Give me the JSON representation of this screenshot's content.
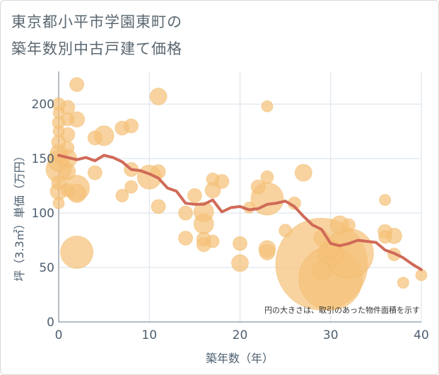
{
  "chart_data": {
    "type": "scatter",
    "title_lines": [
      "東京都小平市学園東町の",
      "築年数別中古戸建て価格"
    ],
    "xlabel": "築年数（年）",
    "ylabel": "坪（3.3㎡）単価（万円）",
    "xlim": [
      0,
      40
    ],
    "ylim": [
      0,
      230
    ],
    "x_ticks": [
      0,
      10,
      20,
      30,
      40
    ],
    "y_ticks": [
      0,
      50,
      100,
      150,
      200
    ],
    "note": "円の大きさは、取引のあった物件面積を示す",
    "colors": {
      "bubble": "#f5c27a",
      "bubble_stroke": "#f0b35a",
      "trend": "#d06a58",
      "grid": "#d8e1ea"
    },
    "trend": [
      [
        0,
        153
      ],
      [
        1,
        151
      ],
      [
        2,
        149
      ],
      [
        3,
        151
      ],
      [
        4,
        148
      ],
      [
        5,
        153
      ],
      [
        6,
        151
      ],
      [
        7,
        147
      ],
      [
        8,
        140
      ],
      [
        9,
        139
      ],
      [
        10,
        136
      ],
      [
        11,
        132
      ],
      [
        12,
        123
      ],
      [
        13,
        120
      ],
      [
        14,
        109
      ],
      [
        15,
        108
      ],
      [
        16,
        108
      ],
      [
        17,
        112
      ],
      [
        18,
        101
      ],
      [
        19,
        105
      ],
      [
        20,
        106
      ],
      [
        21,
        103
      ],
      [
        22,
        104
      ],
      [
        23,
        108
      ],
      [
        24,
        109
      ],
      [
        25,
        111
      ],
      [
        26,
        106
      ],
      [
        27,
        97
      ],
      [
        28,
        89
      ],
      [
        29,
        85
      ],
      [
        30,
        72
      ],
      [
        31,
        70
      ],
      [
        32,
        72
      ],
      [
        33,
        75
      ],
      [
        34,
        74
      ],
      [
        35,
        73
      ],
      [
        36,
        66
      ],
      [
        37,
        63
      ],
      [
        38,
        59
      ],
      [
        39,
        53
      ],
      [
        40,
        48
      ]
    ],
    "points": [
      {
        "x": 0,
        "y": 200,
        "s": 0.9
      },
      {
        "x": 0,
        "y": 192,
        "s": 0.8
      },
      {
        "x": 0,
        "y": 183,
        "s": 0.9
      },
      {
        "x": 0,
        "y": 175,
        "s": 0.8
      },
      {
        "x": 0,
        "y": 165,
        "s": 1.0
      },
      {
        "x": 0,
        "y": 155,
        "s": 1.2
      },
      {
        "x": 0,
        "y": 148,
        "s": 1.5
      },
      {
        "x": 0,
        "y": 140,
        "s": 1.8
      },
      {
        "x": 0,
        "y": 128,
        "s": 1.0
      },
      {
        "x": 0,
        "y": 120,
        "s": 1.2
      },
      {
        "x": 0,
        "y": 109,
        "s": 0.8
      },
      {
        "x": 1,
        "y": 197,
        "s": 1.0
      },
      {
        "x": 1,
        "y": 186,
        "s": 0.9
      },
      {
        "x": 1,
        "y": 172,
        "s": 1.0
      },
      {
        "x": 1,
        "y": 160,
        "s": 0.9
      },
      {
        "x": 1,
        "y": 150,
        "s": 1.3
      },
      {
        "x": 1,
        "y": 138,
        "s": 1.1
      },
      {
        "x": 1,
        "y": 121,
        "s": 0.9
      },
      {
        "x": 2,
        "y": 218,
        "s": 1.0
      },
      {
        "x": 2,
        "y": 186,
        "s": 1.1
      },
      {
        "x": 2,
        "y": 123,
        "s": 1.8
      },
      {
        "x": 2,
        "y": 118,
        "s": 1.3
      },
      {
        "x": 2,
        "y": 64,
        "s": 2.3
      },
      {
        "x": 4,
        "y": 169,
        "s": 1.0
      },
      {
        "x": 4,
        "y": 137,
        "s": 1.0
      },
      {
        "x": 5,
        "y": 171,
        "s": 1.4
      },
      {
        "x": 7,
        "y": 178,
        "s": 1.0
      },
      {
        "x": 7,
        "y": 116,
        "s": 0.9
      },
      {
        "x": 8,
        "y": 180,
        "s": 1.0
      },
      {
        "x": 8,
        "y": 140,
        "s": 1.0
      },
      {
        "x": 8,
        "y": 124,
        "s": 0.9
      },
      {
        "x": 10,
        "y": 133,
        "s": 1.7
      },
      {
        "x": 11,
        "y": 207,
        "s": 1.2
      },
      {
        "x": 11,
        "y": 138,
        "s": 1.0
      },
      {
        "x": 11,
        "y": 106,
        "s": 1.0
      },
      {
        "x": 14,
        "y": 100,
        "s": 1.0
      },
      {
        "x": 14,
        "y": 77,
        "s": 1.0
      },
      {
        "x": 15,
        "y": 116,
        "s": 1.0
      },
      {
        "x": 16,
        "y": 101,
        "s": 1.4
      },
      {
        "x": 16,
        "y": 90,
        "s": 1.4
      },
      {
        "x": 16,
        "y": 76,
        "s": 1.0
      },
      {
        "x": 16,
        "y": 71,
        "s": 1.0
      },
      {
        "x": 17,
        "y": 131,
        "s": 0.9
      },
      {
        "x": 17,
        "y": 121,
        "s": 1.1
      },
      {
        "x": 17,
        "y": 74,
        "s": 0.9
      },
      {
        "x": 18,
        "y": 129,
        "s": 1.0
      },
      {
        "x": 20,
        "y": 72,
        "s": 1.0
      },
      {
        "x": 20,
        "y": 54,
        "s": 1.2
      },
      {
        "x": 21,
        "y": 105,
        "s": 0.8
      },
      {
        "x": 22,
        "y": 124,
        "s": 1.0
      },
      {
        "x": 23,
        "y": 198,
        "s": 0.8
      },
      {
        "x": 23,
        "y": 133,
        "s": 0.9
      },
      {
        "x": 23,
        "y": 113,
        "s": 2.3
      },
      {
        "x": 23,
        "y": 67,
        "s": 1.2
      },
      {
        "x": 23,
        "y": 64,
        "s": 1.1
      },
      {
        "x": 25,
        "y": 84,
        "s": 0.9
      },
      {
        "x": 26,
        "y": 109,
        "s": 0.9
      },
      {
        "x": 27,
        "y": 137,
        "s": 1.2
      },
      {
        "x": 29,
        "y": 77,
        "s": 1.1
      },
      {
        "x": 29,
        "y": 53,
        "s": 6.5
      },
      {
        "x": 29,
        "y": 47,
        "s": 1.3
      },
      {
        "x": 30,
        "y": 67,
        "s": 1.3
      },
      {
        "x": 30,
        "y": 63,
        "s": 1.8
      },
      {
        "x": 30,
        "y": 40,
        "s": 4.5
      },
      {
        "x": 31,
        "y": 89,
        "s": 1.3
      },
      {
        "x": 32,
        "y": 89,
        "s": 0.9
      },
      {
        "x": 32,
        "y": 63,
        "s": 3.5
      },
      {
        "x": 36,
        "y": 112,
        "s": 0.8
      },
      {
        "x": 36,
        "y": 83,
        "s": 1.0
      },
      {
        "x": 36,
        "y": 78,
        "s": 0.9
      },
      {
        "x": 37,
        "y": 79,
        "s": 1.1
      },
      {
        "x": 37,
        "y": 62,
        "s": 0.9
      },
      {
        "x": 38,
        "y": 36,
        "s": 0.8
      },
      {
        "x": 40,
        "y": 43,
        "s": 0.8
      }
    ]
  }
}
